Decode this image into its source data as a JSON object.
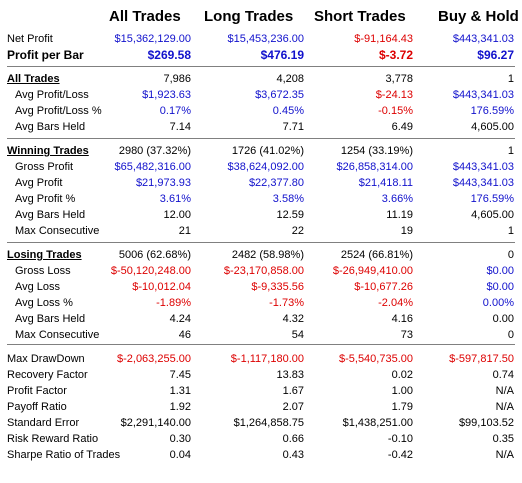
{
  "columns": [
    "All Trades",
    "Long Trades",
    "Short Trades",
    "Buy & Hold"
  ],
  "colors": {
    "positive": "#1111cc",
    "negative": "#dd0000",
    "neutral": "#000000",
    "separator": "#808080"
  },
  "rows": [
    {
      "label": "Net Profit",
      "indent": false,
      "bold": false,
      "section": false,
      "values": [
        "$15,362,129.00",
        "$15,453,236.00",
        "$-91,164.43",
        "$443,341.03"
      ],
      "colors": [
        "blue",
        "blue",
        "red",
        "blue"
      ]
    },
    {
      "label": "Profit per Bar",
      "indent": false,
      "bold": true,
      "section": false,
      "values": [
        "$269.58",
        "$476.19",
        "$-3.72",
        "$96.27"
      ],
      "colors": [
        "blue",
        "blue",
        "red",
        "blue"
      ]
    },
    {
      "label": "All Trades",
      "indent": false,
      "bold": false,
      "section": true,
      "values": [
        "7,986",
        "4,208",
        "3,778",
        "1"
      ],
      "colors": [
        "",
        "",
        "",
        ""
      ]
    },
    {
      "label": "Avg Profit/Loss",
      "indent": true,
      "bold": false,
      "section": false,
      "values": [
        "$1,923.63",
        "$3,672.35",
        "$-24.13",
        "$443,341.03"
      ],
      "colors": [
        "blue",
        "blue",
        "red",
        "blue"
      ]
    },
    {
      "label": "Avg Profit/Loss %",
      "indent": true,
      "bold": false,
      "section": false,
      "values": [
        "0.17%",
        "0.45%",
        "-0.15%",
        "176.59%"
      ],
      "colors": [
        "blue",
        "blue",
        "red",
        "blue"
      ]
    },
    {
      "label": "Avg Bars Held",
      "indent": true,
      "bold": false,
      "section": false,
      "values": [
        "7.14",
        "7.71",
        "6.49",
        "4,605.00"
      ],
      "colors": [
        "",
        "",
        "",
        ""
      ]
    },
    {
      "label": "Winning Trades",
      "indent": false,
      "bold": false,
      "section": true,
      "values": [
        "2980 (37.32%)",
        "1726 (41.02%)",
        "1254 (33.19%)",
        "1"
      ],
      "colors": [
        "",
        "",
        "",
        ""
      ]
    },
    {
      "label": "Gross Profit",
      "indent": true,
      "bold": false,
      "section": false,
      "values": [
        "$65,482,316.00",
        "$38,624,092.00",
        "$26,858,314.00",
        "$443,341.03"
      ],
      "colors": [
        "blue",
        "blue",
        "blue",
        "blue"
      ]
    },
    {
      "label": "Avg Profit",
      "indent": true,
      "bold": false,
      "section": false,
      "values": [
        "$21,973.93",
        "$22,377.80",
        "$21,418.11",
        "$443,341.03"
      ],
      "colors": [
        "blue",
        "blue",
        "blue",
        "blue"
      ]
    },
    {
      "label": "Avg Profit %",
      "indent": true,
      "bold": false,
      "section": false,
      "values": [
        "3.61%",
        "3.58%",
        "3.66%",
        "176.59%"
      ],
      "colors": [
        "blue",
        "blue",
        "blue",
        "blue"
      ]
    },
    {
      "label": "Avg Bars Held",
      "indent": true,
      "bold": false,
      "section": false,
      "values": [
        "12.00",
        "12.59",
        "11.19",
        "4,605.00"
      ],
      "colors": [
        "",
        "",
        "",
        ""
      ]
    },
    {
      "label": "Max Consecutive",
      "indent": true,
      "bold": false,
      "section": false,
      "values": [
        "21",
        "22",
        "19",
        "1"
      ],
      "colors": [
        "",
        "",
        "",
        ""
      ]
    },
    {
      "label": "Losing Trades",
      "indent": false,
      "bold": false,
      "section": true,
      "values": [
        "5006 (62.68%)",
        "2482 (58.98%)",
        "2524 (66.81%)",
        "0"
      ],
      "colors": [
        "",
        "",
        "",
        ""
      ]
    },
    {
      "label": "Gross Loss",
      "indent": true,
      "bold": false,
      "section": false,
      "values": [
        "$-50,120,248.00",
        "$-23,170,858.00",
        "$-26,949,410.00",
        "$0.00"
      ],
      "colors": [
        "red",
        "red",
        "red",
        "blue"
      ]
    },
    {
      "label": "Avg Loss",
      "indent": true,
      "bold": false,
      "section": false,
      "values": [
        "$-10,012.04",
        "$-9,335.56",
        "$-10,677.26",
        "$0.00"
      ],
      "colors": [
        "red",
        "red",
        "red",
        "blue"
      ]
    },
    {
      "label": "Avg Loss %",
      "indent": true,
      "bold": false,
      "section": false,
      "values": [
        "-1.89%",
        "-1.73%",
        "-2.04%",
        "0.00%"
      ],
      "colors": [
        "red",
        "red",
        "red",
        "blue"
      ]
    },
    {
      "label": "Avg Bars Held",
      "indent": true,
      "bold": false,
      "section": false,
      "values": [
        "4.24",
        "4.32",
        "4.16",
        "0.00"
      ],
      "colors": [
        "",
        "",
        "",
        ""
      ]
    },
    {
      "label": "Max Consecutive",
      "indent": true,
      "bold": false,
      "section": false,
      "values": [
        "46",
        "54",
        "73",
        "0"
      ],
      "colors": [
        "",
        "",
        "",
        ""
      ]
    },
    {
      "label": "Max DrawDown",
      "indent": false,
      "bold": false,
      "section": false,
      "values": [
        "$-2,063,255.00",
        "$-1,117,180.00",
        "$-5,540,735.00",
        "$-597,817.50"
      ],
      "colors": [
        "red",
        "red",
        "red",
        "red"
      ]
    },
    {
      "label": "Recovery Factor",
      "indent": false,
      "bold": false,
      "section": false,
      "values": [
        "7.45",
        "13.83",
        "0.02",
        "0.74"
      ],
      "colors": [
        "",
        "",
        "",
        ""
      ]
    },
    {
      "label": "Profit Factor",
      "indent": false,
      "bold": false,
      "section": false,
      "values": [
        "1.31",
        "1.67",
        "1.00",
        "N/A"
      ],
      "colors": [
        "",
        "",
        "",
        ""
      ]
    },
    {
      "label": "Payoff Ratio",
      "indent": false,
      "bold": false,
      "section": false,
      "values": [
        "1.92",
        "2.07",
        "1.79",
        "N/A"
      ],
      "colors": [
        "",
        "",
        "",
        ""
      ]
    },
    {
      "label": "Standard Error",
      "indent": false,
      "bold": false,
      "section": false,
      "values": [
        "$2,291,140.00",
        "$1,264,858.75",
        "$1,438,251.00",
        "$99,103.52"
      ],
      "colors": [
        "",
        "",
        "",
        ""
      ]
    },
    {
      "label": "Risk Reward Ratio",
      "indent": false,
      "bold": false,
      "section": false,
      "values": [
        "0.30",
        "0.66",
        "-0.10",
        "0.35"
      ],
      "colors": [
        "",
        "",
        "",
        ""
      ]
    },
    {
      "label": "Sharpe Ratio of Trades",
      "indent": false,
      "bold": false,
      "section": false,
      "values": [
        "0.04",
        "0.43",
        "-0.42",
        "N/A"
      ],
      "colors": [
        "",
        "",
        "",
        ""
      ]
    }
  ]
}
